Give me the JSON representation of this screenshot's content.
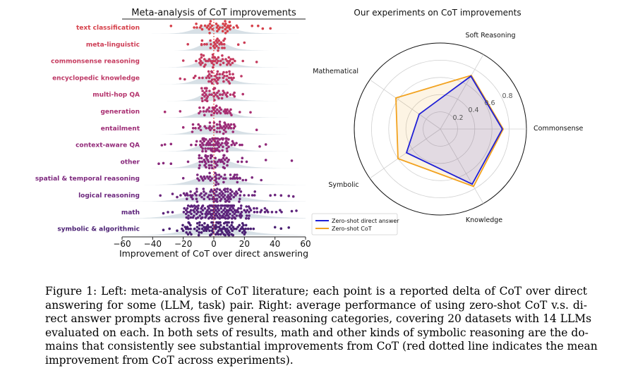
{
  "chart_data": [
    {
      "type": "scatter",
      "title": "Meta-analysis of CoT improvements",
      "xlabel": "Improvement of CoT over direct answering",
      "ylabel": "",
      "xlim": [
        -60,
        60
      ],
      "xticks": [
        "−60",
        "−40",
        "−20",
        "0",
        "20",
        "40",
        "60"
      ],
      "mean_line": {
        "x": 0,
        "style": "dotted",
        "color": "#e0392b"
      },
      "categories": [
        {
          "name": "text classification",
          "color": "#d6404a",
          "n": 40,
          "spread": 8,
          "lo": -22,
          "hi": 18,
          "outliers": [
            -28,
            25,
            29,
            32,
            37
          ]
        },
        {
          "name": "meta-linguistic",
          "color": "#cd3d55",
          "n": 26,
          "spread": 6,
          "lo": -10,
          "hi": 8,
          "outliers": [
            -17,
            -8,
            16,
            20
          ]
        },
        {
          "name": "commonsense reasoning",
          "color": "#c53a5e",
          "n": 44,
          "spread": 7,
          "lo": -12,
          "hi": 14,
          "outliers": [
            -20,
            28,
            19
          ]
        },
        {
          "name": "encyclopedic knowledge",
          "color": "#bd3765",
          "n": 44,
          "spread": 7,
          "lo": -14,
          "hi": 13,
          "outliers": [
            -22,
            -19,
            18
          ]
        },
        {
          "name": "multi-hop QA",
          "color": "#b4336c",
          "n": 40,
          "spread": 6,
          "lo": -8,
          "hi": 14,
          "outliers": [
            -4,
            19
          ]
        },
        {
          "name": "generation",
          "color": "#a92f72",
          "n": 34,
          "spread": 7,
          "lo": -10,
          "hi": 12,
          "outliers": [
            -32,
            -22,
            24,
            17
          ]
        },
        {
          "name": "entailment",
          "color": "#9d2c76",
          "n": 44,
          "spread": 8,
          "lo": -16,
          "hi": 20,
          "outliers": [
            -20,
            28
          ]
        },
        {
          "name": "context-aware QA",
          "color": "#922979",
          "n": 80,
          "spread": 7,
          "lo": -16,
          "hi": 20,
          "outliers": [
            -34,
            -32,
            -28,
            30,
            34
          ]
        },
        {
          "name": "other",
          "color": "#87287b",
          "n": 56,
          "spread": 8,
          "lo": -18,
          "hi": 22,
          "outliers": [
            -36,
            -33,
            -28,
            34,
            51
          ]
        },
        {
          "name": "spatial & temporal reasoning",
          "color": "#7c277d",
          "n": 38,
          "spread": 9,
          "lo": -12,
          "hi": 22,
          "outliers": [
            -20,
            13,
            15,
            17,
            19,
            21,
            25,
            31
          ]
        },
        {
          "name": "logical reasoning",
          "color": "#6c267d",
          "n": 90,
          "spread": 11,
          "lo": -22,
          "hi": 34,
          "outliers": [
            -35,
            -27,
            -24,
            37,
            40,
            44,
            49,
            52
          ]
        },
        {
          "name": "math",
          "color": "#5c237b",
          "n": 180,
          "spread": 14,
          "lo": -20,
          "hi": 48,
          "outliers": [
            -33,
            -30,
            -27,
            51,
            54
          ]
        },
        {
          "name": "symbolic & algorithmic",
          "color": "#4a1f72",
          "n": 110,
          "spread": 12,
          "lo": -22,
          "hi": 36,
          "outliers": [
            -33,
            -29,
            -24,
            40,
            44,
            49
          ]
        }
      ]
    },
    {
      "type": "radar",
      "title": "Our experiments on CoT improvements",
      "axes": [
        "Soft Reasoning",
        "Commonsense",
        "Knowledge",
        "Symbolic",
        "Mathematical"
      ],
      "rlim": [
        0,
        1
      ],
      "rticks": [
        "0.2",
        "0.4",
        "0.6",
        "0.8"
      ],
      "series": [
        {
          "name": "Zero-shot direct answer",
          "color": "#1f1fd6",
          "values": [
            0.71,
            0.72,
            0.74,
            0.48,
            0.3
          ]
        },
        {
          "name": "Zero-shot CoT",
          "color": "#f2a21f",
          "values": [
            0.72,
            0.73,
            0.77,
            0.6,
            0.63
          ]
        }
      ],
      "legend": "bottom-left"
    }
  ],
  "caption": {
    "lines": [
      "Figure 1: Left: meta-analysis of CoT literature; each point is a reported delta of CoT over direct",
      "answering for some (LLM, task) pair. Right: average performance of using zero-shot CoT v.s. di-",
      "rect answer prompts across five general reasoning categories, covering 20 datasets with 14 LLMs",
      "evaluated on each. In both sets of results, math and other kinds of symbolic reasoning are the do-",
      "mains that consistently see substantial improvements from CoT (red dotted line indicates the mean",
      "improvement from CoT across experiments)."
    ]
  }
}
